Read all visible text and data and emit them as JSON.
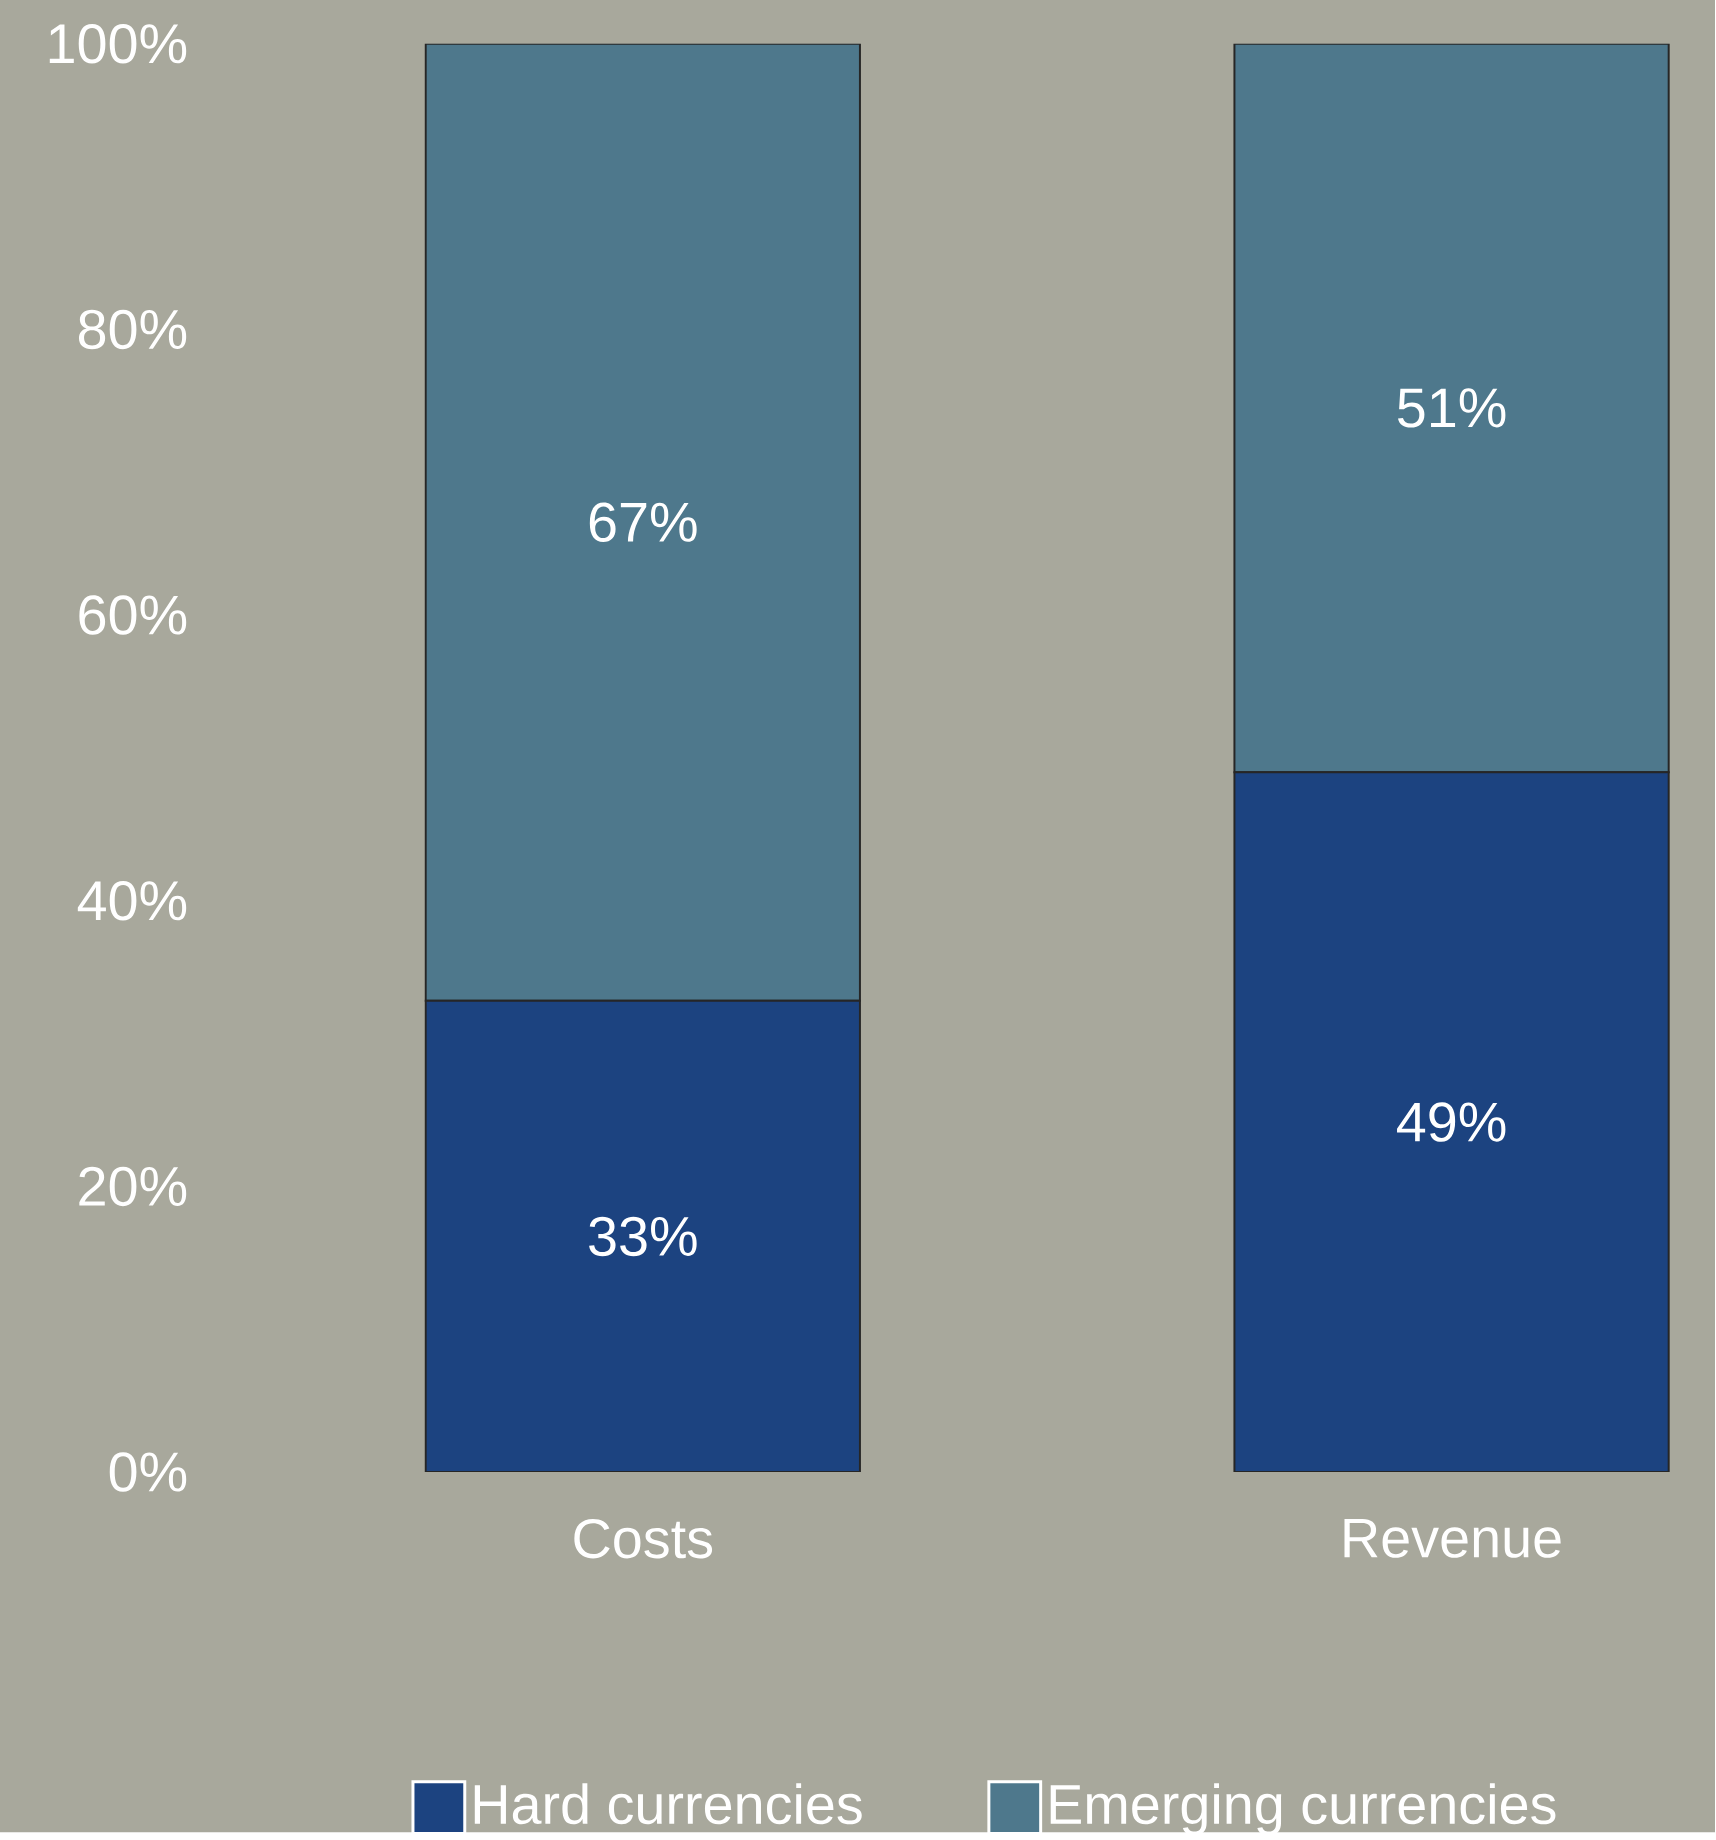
{
  "chart_data": {
    "type": "bar",
    "stacked": true,
    "categories": [
      "Costs",
      "Revenue"
    ],
    "series": [
      {
        "name": "Hard currencies",
        "color": "#1c4380",
        "values": [
          33,
          49
        ],
        "value_labels": [
          "33%",
          "49%"
        ]
      },
      {
        "name": "Emerging currencies",
        "color": "#4e788c",
        "values": [
          67,
          51
        ],
        "value_labels": [
          "67%",
          "51%"
        ]
      }
    ],
    "ylim": [
      0,
      100
    ],
    "yticks": [
      {
        "value": 0,
        "label": "0%"
      },
      {
        "value": 20,
        "label": "20%"
      },
      {
        "value": 40,
        "label": "40%"
      },
      {
        "value": 60,
        "label": "60%"
      },
      {
        "value": 80,
        "label": "80%"
      },
      {
        "value": 100,
        "label": "100%"
      }
    ],
    "legend": "bottom",
    "grid": false
  }
}
